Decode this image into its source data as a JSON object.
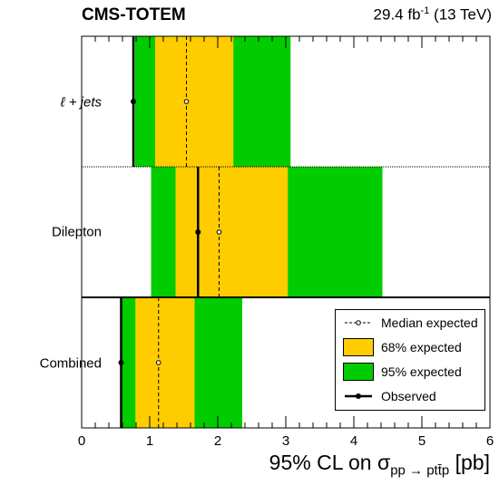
{
  "header": {
    "experiment": "CMS-TOTEM",
    "lumi_value": "29.4 fb",
    "lumi_exp": "-1",
    "energy": "(13 TeV)"
  },
  "axis": {
    "title_prefix": "95% CL on σ",
    "title_sub": "pp → ptt̄p",
    "title_suffix": "[pb]"
  },
  "legend": {
    "median": "Median expected",
    "band68": "68% expected",
    "band95": "95% expected",
    "observed": "Observed"
  },
  "colors": {
    "band68": "#ffcc00",
    "band95": "#00cc00",
    "line": "#000000"
  },
  "chart_data": {
    "type": "limit_bands",
    "x_range": [
      0,
      6
    ],
    "x_ticks": [
      0,
      1,
      2,
      3,
      4,
      5,
      6
    ],
    "categories": [
      {
        "label": "ℓ + jets",
        "italic": true,
        "band95": [
          0.78,
          3.07
        ],
        "band68": [
          1.08,
          2.23
        ],
        "median": 1.54,
        "observed": 0.76
      },
      {
        "label": "Dilepton",
        "italic": false,
        "band95": [
          1.02,
          4.42
        ],
        "band68": [
          1.38,
          3.03
        ],
        "median": 2.02,
        "observed": 1.71
      },
      {
        "label": "Combined",
        "italic": false,
        "band95": [
          0.59,
          2.36
        ],
        "band68": [
          0.79,
          1.66
        ],
        "median": 1.13,
        "observed": 0.58
      }
    ]
  }
}
